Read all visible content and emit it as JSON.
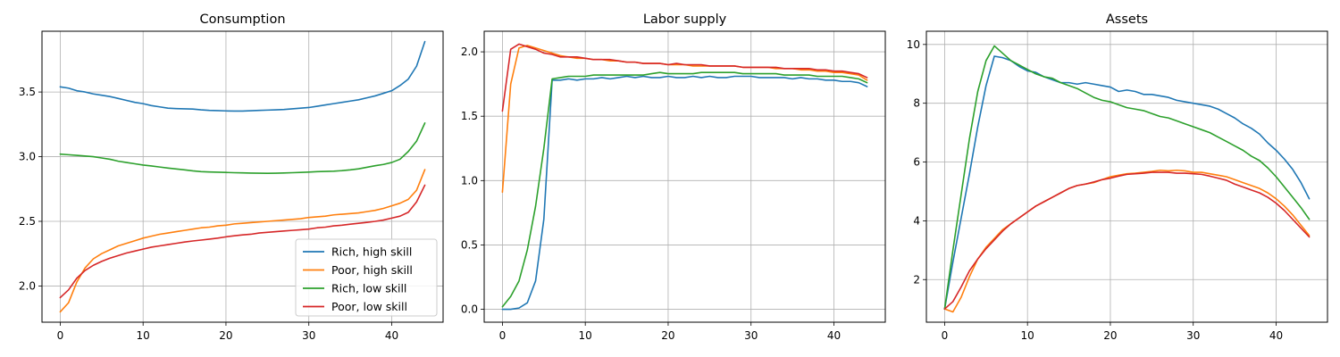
{
  "chart_data": [
    {
      "type": "line",
      "title": "Consumption",
      "xlabel": "",
      "ylabel": "",
      "xlim": [
        -2.2,
        46.2
      ],
      "ylim": [
        1.72,
        3.97
      ],
      "xticks": [
        0,
        10,
        20,
        30,
        40
      ],
      "yticks": [
        2.0,
        2.5,
        3.0,
        3.5
      ],
      "ytick_labels": [
        "2.0",
        "2.5",
        "3.0",
        "3.5"
      ],
      "grid": true,
      "legend": "lower-right",
      "x": [
        0,
        1,
        2,
        3,
        4,
        5,
        6,
        7,
        8,
        9,
        10,
        11,
        12,
        13,
        14,
        15,
        16,
        17,
        18,
        19,
        20,
        21,
        22,
        23,
        24,
        25,
        26,
        27,
        28,
        29,
        30,
        31,
        32,
        33,
        34,
        35,
        36,
        37,
        38,
        39,
        40,
        41,
        42,
        43,
        44
      ],
      "series": [
        {
          "name": "Rich, high skill",
          "color": "#1f77b4",
          "values": [
            3.54,
            3.53,
            3.51,
            3.5,
            3.485,
            3.475,
            3.465,
            3.45,
            3.435,
            3.42,
            3.41,
            3.395,
            3.385,
            3.375,
            3.372,
            3.37,
            3.368,
            3.362,
            3.358,
            3.356,
            3.354,
            3.353,
            3.353,
            3.355,
            3.358,
            3.36,
            3.362,
            3.365,
            3.37,
            3.375,
            3.38,
            3.39,
            3.4,
            3.41,
            3.42,
            3.43,
            3.44,
            3.455,
            3.47,
            3.49,
            3.51,
            3.55,
            3.6,
            3.7,
            3.89
          ]
        },
        {
          "name": "Poor, high skill",
          "color": "#ff7f0e",
          "values": [
            1.8,
            1.87,
            2.03,
            2.14,
            2.21,
            2.25,
            2.28,
            2.31,
            2.33,
            2.35,
            2.37,
            2.385,
            2.4,
            2.41,
            2.42,
            2.43,
            2.44,
            2.45,
            2.455,
            2.465,
            2.47,
            2.48,
            2.485,
            2.49,
            2.495,
            2.5,
            2.505,
            2.51,
            2.515,
            2.52,
            2.53,
            2.535,
            2.54,
            2.55,
            2.555,
            2.56,
            2.565,
            2.575,
            2.585,
            2.6,
            2.62,
            2.64,
            2.67,
            2.74,
            2.9
          ]
        },
        {
          "name": "Rich, low skill",
          "color": "#2ca02c",
          "values": [
            3.02,
            3.015,
            3.01,
            3.005,
            3.0,
            2.99,
            2.98,
            2.965,
            2.955,
            2.945,
            2.935,
            2.928,
            2.92,
            2.912,
            2.905,
            2.898,
            2.89,
            2.884,
            2.882,
            2.88,
            2.878,
            2.876,
            2.875,
            2.873,
            2.872,
            2.871,
            2.872,
            2.874,
            2.876,
            2.878,
            2.881,
            2.884,
            2.886,
            2.888,
            2.892,
            2.898,
            2.906,
            2.918,
            2.93,
            2.94,
            2.955,
            2.98,
            3.04,
            3.12,
            3.26
          ]
        },
        {
          "name": "Poor, low skill",
          "color": "#d62728",
          "values": [
            1.91,
            1.97,
            2.06,
            2.12,
            2.16,
            2.19,
            2.215,
            2.235,
            2.255,
            2.27,
            2.285,
            2.3,
            2.31,
            2.32,
            2.33,
            2.34,
            2.348,
            2.355,
            2.362,
            2.37,
            2.38,
            2.388,
            2.395,
            2.4,
            2.41,
            2.415,
            2.42,
            2.425,
            2.43,
            2.435,
            2.44,
            2.45,
            2.455,
            2.465,
            2.47,
            2.478,
            2.485,
            2.492,
            2.5,
            2.51,
            2.525,
            2.54,
            2.57,
            2.65,
            2.78
          ]
        }
      ]
    },
    {
      "type": "line",
      "title": "Labor supply",
      "xlabel": "",
      "ylabel": "",
      "xlim": [
        -2.2,
        46.2
      ],
      "ylim": [
        -0.1,
        2.16
      ],
      "xticks": [
        0,
        10,
        20,
        30,
        40
      ],
      "yticks": [
        0.0,
        0.5,
        1.0,
        1.5,
        2.0
      ],
      "ytick_labels": [
        "0.0",
        "0.5",
        "1.0",
        "1.5",
        "2.0"
      ],
      "grid": true,
      "x": [
        0,
        1,
        2,
        3,
        4,
        5,
        6,
        7,
        8,
        9,
        10,
        11,
        12,
        13,
        14,
        15,
        16,
        17,
        18,
        19,
        20,
        21,
        22,
        23,
        24,
        25,
        26,
        27,
        28,
        29,
        30,
        31,
        32,
        33,
        34,
        35,
        36,
        37,
        38,
        39,
        40,
        41,
        42,
        43,
        44
      ],
      "series": [
        {
          "name": "Rich, high skill",
          "color": "#1f77b4",
          "values": [
            0.0,
            0.0,
            0.01,
            0.05,
            0.22,
            0.7,
            1.78,
            1.78,
            1.79,
            1.78,
            1.79,
            1.79,
            1.8,
            1.79,
            1.8,
            1.81,
            1.8,
            1.81,
            1.8,
            1.8,
            1.81,
            1.8,
            1.8,
            1.81,
            1.8,
            1.81,
            1.8,
            1.8,
            1.81,
            1.81,
            1.81,
            1.8,
            1.8,
            1.8,
            1.8,
            1.79,
            1.8,
            1.79,
            1.79,
            1.78,
            1.78,
            1.77,
            1.77,
            1.76,
            1.73
          ]
        },
        {
          "name": "Poor, high skill",
          "color": "#ff7f0e",
          "values": [
            0.91,
            1.75,
            2.03,
            2.05,
            2.03,
            2.01,
            1.99,
            1.97,
            1.96,
            1.95,
            1.95,
            1.94,
            1.94,
            1.93,
            1.93,
            1.92,
            1.92,
            1.91,
            1.91,
            1.91,
            1.9,
            1.9,
            1.9,
            1.89,
            1.89,
            1.89,
            1.89,
            1.89,
            1.89,
            1.88,
            1.88,
            1.88,
            1.88,
            1.87,
            1.87,
            1.87,
            1.86,
            1.86,
            1.85,
            1.85,
            1.84,
            1.84,
            1.83,
            1.82,
            1.78
          ]
        },
        {
          "name": "Rich, low skill",
          "color": "#2ca02c",
          "values": [
            0.02,
            0.1,
            0.22,
            0.46,
            0.8,
            1.25,
            1.79,
            1.8,
            1.81,
            1.81,
            1.81,
            1.82,
            1.82,
            1.82,
            1.82,
            1.82,
            1.82,
            1.82,
            1.83,
            1.84,
            1.83,
            1.83,
            1.83,
            1.83,
            1.84,
            1.84,
            1.84,
            1.84,
            1.84,
            1.83,
            1.83,
            1.83,
            1.83,
            1.83,
            1.82,
            1.82,
            1.82,
            1.82,
            1.81,
            1.81,
            1.81,
            1.81,
            1.8,
            1.79,
            1.76
          ]
        },
        {
          "name": "Poor, low skill",
          "color": "#d62728",
          "values": [
            1.54,
            2.02,
            2.06,
            2.04,
            2.02,
            1.99,
            1.98,
            1.96,
            1.96,
            1.96,
            1.95,
            1.94,
            1.94,
            1.94,
            1.93,
            1.92,
            1.92,
            1.91,
            1.91,
            1.91,
            1.9,
            1.91,
            1.9,
            1.9,
            1.9,
            1.89,
            1.89,
            1.89,
            1.89,
            1.88,
            1.88,
            1.88,
            1.88,
            1.88,
            1.87,
            1.87,
            1.87,
            1.87,
            1.86,
            1.86,
            1.85,
            1.85,
            1.84,
            1.83,
            1.8
          ]
        }
      ]
    },
    {
      "type": "line",
      "title": "Assets",
      "xlabel": "",
      "ylabel": "",
      "xlim": [
        -2.2,
        46.2
      ],
      "ylim": [
        0.55,
        10.45
      ],
      "xticks": [
        0,
        10,
        20,
        30,
        40
      ],
      "yticks": [
        2,
        4,
        6,
        8,
        10
      ],
      "ytick_labels": [
        "2",
        "4",
        "6",
        "8",
        "10"
      ],
      "grid": true,
      "x": [
        0,
        1,
        2,
        3,
        4,
        5,
        6,
        7,
        8,
        9,
        10,
        11,
        12,
        13,
        14,
        15,
        16,
        17,
        18,
        19,
        20,
        21,
        22,
        23,
        24,
        25,
        26,
        27,
        28,
        29,
        30,
        31,
        32,
        33,
        34,
        35,
        36,
        37,
        38,
        39,
        40,
        41,
        42,
        43,
        44
      ],
      "series": [
        {
          "name": "Rich, high skill",
          "color": "#1f77b4",
          "values": [
            1.0,
            2.6,
            4.1,
            5.6,
            7.2,
            8.6,
            9.6,
            9.55,
            9.45,
            9.25,
            9.1,
            9.05,
            8.9,
            8.8,
            8.7,
            8.7,
            8.65,
            8.7,
            8.65,
            8.6,
            8.55,
            8.4,
            8.45,
            8.4,
            8.3,
            8.3,
            8.25,
            8.2,
            8.1,
            8.05,
            8.0,
            7.95,
            7.9,
            7.8,
            7.65,
            7.5,
            7.3,
            7.15,
            6.95,
            6.65,
            6.4,
            6.1,
            5.75,
            5.3,
            4.75
          ]
        },
        {
          "name": "Poor, high skill",
          "color": "#ff7f0e",
          "values": [
            1.0,
            0.9,
            1.4,
            2.1,
            2.7,
            3.1,
            3.4,
            3.7,
            3.9,
            4.1,
            4.3,
            4.5,
            4.65,
            4.8,
            4.95,
            5.1,
            5.2,
            5.25,
            5.3,
            5.4,
            5.5,
            5.55,
            5.6,
            5.62,
            5.65,
            5.68,
            5.72,
            5.7,
            5.72,
            5.7,
            5.65,
            5.65,
            5.6,
            5.55,
            5.5,
            5.4,
            5.3,
            5.2,
            5.1,
            4.95,
            4.75,
            4.5,
            4.2,
            3.85,
            3.5
          ]
        },
        {
          "name": "Rich, low skill",
          "color": "#2ca02c",
          "values": [
            1.0,
            3.0,
            4.9,
            6.8,
            8.4,
            9.45,
            9.95,
            9.7,
            9.45,
            9.3,
            9.15,
            9.0,
            8.9,
            8.85,
            8.7,
            8.6,
            8.5,
            8.35,
            8.2,
            8.1,
            8.05,
            7.95,
            7.85,
            7.8,
            7.75,
            7.65,
            7.55,
            7.5,
            7.4,
            7.3,
            7.2,
            7.1,
            7.0,
            6.85,
            6.7,
            6.55,
            6.4,
            6.2,
            6.05,
            5.8,
            5.5,
            5.15,
            4.8,
            4.45,
            4.05
          ]
        },
        {
          "name": "Poor, low skill",
          "color": "#d62728",
          "values": [
            1.0,
            1.25,
            1.75,
            2.3,
            2.7,
            3.05,
            3.35,
            3.65,
            3.9,
            4.1,
            4.3,
            4.5,
            4.65,
            4.8,
            4.95,
            5.1,
            5.2,
            5.25,
            5.32,
            5.4,
            5.45,
            5.52,
            5.58,
            5.6,
            5.62,
            5.65,
            5.65,
            5.65,
            5.62,
            5.62,
            5.6,
            5.58,
            5.52,
            5.45,
            5.38,
            5.25,
            5.15,
            5.05,
            4.95,
            4.8,
            4.6,
            4.35,
            4.05,
            3.75,
            3.45
          ]
        }
      ]
    }
  ]
}
